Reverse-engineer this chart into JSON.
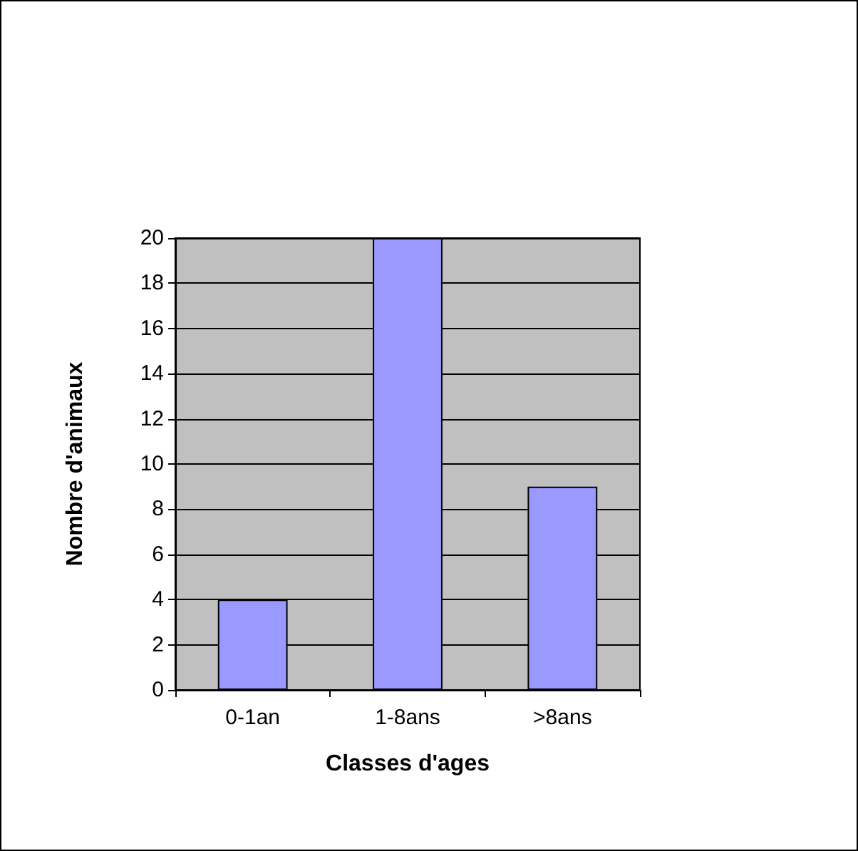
{
  "chart_data": {
    "type": "bar",
    "xlabel": "Classes d'ages",
    "ylabel": "Nombre d'animaux",
    "categories": [
      "0-1an",
      "1-8ans",
      ">8ans"
    ],
    "values": [
      4,
      20,
      9
    ],
    "color": "#9999ff",
    "ylim": [
      0,
      20
    ],
    "yticks": [
      0,
      2,
      4,
      6,
      8,
      10,
      12,
      14,
      16,
      18,
      20
    ],
    "grid": "y"
  }
}
